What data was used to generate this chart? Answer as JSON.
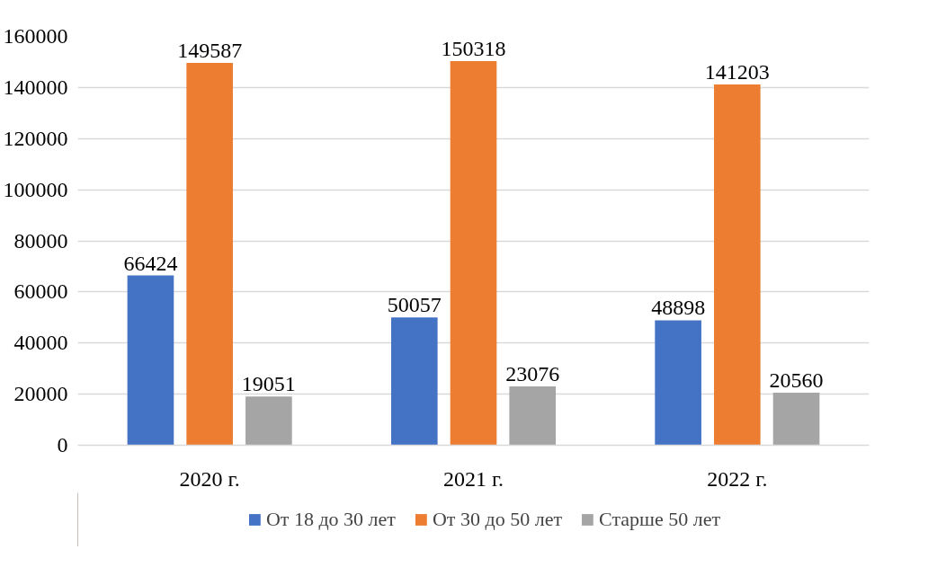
{
  "chart_data": {
    "type": "bar",
    "categories": [
      "2020 г.",
      "2021 г.",
      "2022 г."
    ],
    "series": [
      {
        "name": "От 18 до 30 лет",
        "color": "#4472c4",
        "values": [
          66424,
          50057,
          48898
        ]
      },
      {
        "name": "От 30 до 50 лет",
        "color": "#ed7d31",
        "values": [
          149587,
          150318,
          141203
        ]
      },
      {
        "name": "Старше 50 лет",
        "color": "#a5a5a5",
        "values": [
          19051,
          23076,
          20560
        ]
      }
    ],
    "ylim": [
      0,
      160000
    ],
    "yticks": [
      0,
      20000,
      40000,
      60000,
      80000,
      100000,
      120000,
      140000,
      160000
    ],
    "grid": "y",
    "legend": "bottom",
    "data_labels": true
  }
}
